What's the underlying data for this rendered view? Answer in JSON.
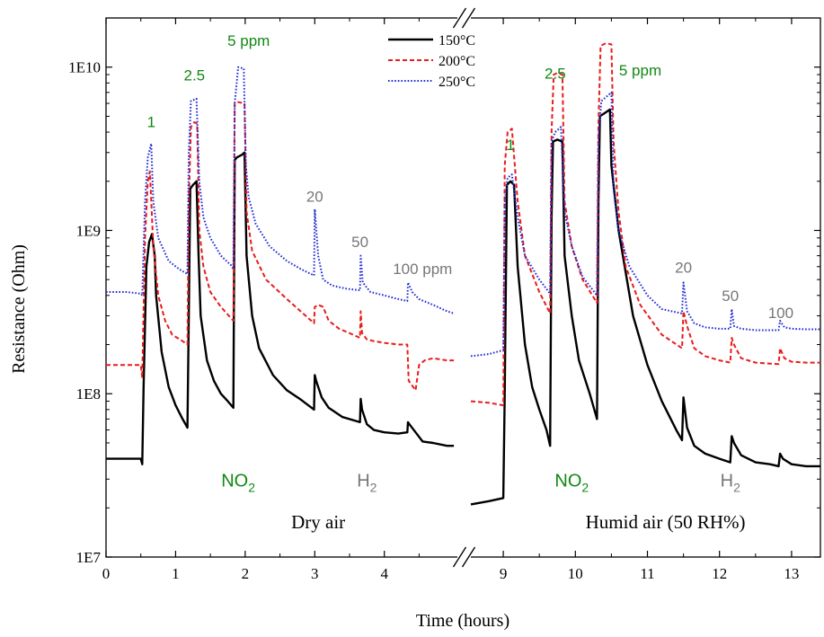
{
  "chart_data": {
    "type": "line",
    "ylabel": "Resistance (Ohm)",
    "xlabel": "Time (hours)",
    "y_scale": "log",
    "ylim": [
      10000000,
      20000000000
    ],
    "y_ticks": [
      {
        "value": 10000000,
        "label": "1E7"
      },
      {
        "value": 100000000,
        "label": "1E8"
      },
      {
        "value": 1000000000,
        "label": "1E9"
      },
      {
        "value": 10000000000,
        "label": "1E10"
      }
    ],
    "x_segments": [
      {
        "range": [
          0,
          5.05
        ],
        "ticks": [
          0,
          1,
          2,
          3,
          4
        ]
      },
      {
        "range": [
          8.55,
          13.4
        ],
        "ticks": [
          9,
          10,
          11,
          12,
          13
        ]
      }
    ],
    "x_tick_labels": [
      "0",
      "1",
      "2",
      "3",
      "4",
      "9",
      "10",
      "11",
      "12",
      "13"
    ],
    "axis_break": true,
    "legend": {
      "placement": "top-center",
      "entries": [
        {
          "name": "150°C",
          "color": "#000000",
          "dash": "solid"
        },
        {
          "name": "200°C",
          "color": "#e81c1c",
          "dash": "dashed"
        },
        {
          "name": "250°C",
          "color": "#1f2bd6",
          "dash": "dotted"
        }
      ]
    },
    "annotations": [
      {
        "text": "1",
        "x": 0.65,
        "y": 4300000000,
        "color": "#118811"
      },
      {
        "text": "2.5",
        "x": 1.27,
        "y": 8300000000,
        "color": "#118811"
      },
      {
        "text": "5 ppm",
        "x": 2.05,
        "y": 13500000000,
        "color": "#118811"
      },
      {
        "text": "20",
        "x": 3.0,
        "y": 1500000000,
        "color": "#777777"
      },
      {
        "text": "50",
        "x": 3.65,
        "y": 790000000,
        "color": "#777777"
      },
      {
        "text": "100 ppm",
        "x": 4.55,
        "y": 540000000,
        "color": "#777777"
      },
      {
        "text": "1",
        "x": 9.1,
        "y": 3100000000,
        "color": "#118811"
      },
      {
        "text": "2.5",
        "x": 9.72,
        "y": 8500000000,
        "color": "#118811"
      },
      {
        "text": "5 ppm",
        "x": 10.9,
        "y": 8900000000,
        "color": "#118811"
      },
      {
        "text": "20",
        "x": 11.5,
        "y": 550000000,
        "color": "#777777"
      },
      {
        "text": "50",
        "x": 12.15,
        "y": 370000000,
        "color": "#777777"
      },
      {
        "text": "100",
        "x": 12.85,
        "y": 290000000,
        "color": "#777777"
      }
    ],
    "gas_labels": [
      {
        "text": "NO",
        "sub": "2",
        "x": 1.9,
        "y": 27000000,
        "color": "#118811"
      },
      {
        "text": "H",
        "sub": "2",
        "x": 3.75,
        "y": 27000000,
        "color": "#777777"
      },
      {
        "text": "NO",
        "sub": "2",
        "x": 9.95,
        "y": 27000000,
        "color": "#118811"
      },
      {
        "text": "H",
        "sub": "2",
        "x": 12.15,
        "y": 27000000,
        "color": "#777777"
      }
    ],
    "panel_labels": [
      {
        "text": "Dry air",
        "x": 3.05,
        "y": 15000000
      },
      {
        "text": "Humid air (50 RH%)",
        "x": 11.25,
        "y": 15000000
      }
    ],
    "series": [
      {
        "name": "150°C",
        "color": "#000000",
        "dash": "solid",
        "x": [
          0,
          0.3,
          0.5,
          0.52,
          0.54,
          0.58,
          0.62,
          0.66,
          0.7,
          0.72,
          0.8,
          0.9,
          1.0,
          1.1,
          1.17,
          1.19,
          1.21,
          1.25,
          1.3,
          1.33,
          1.36,
          1.45,
          1.55,
          1.65,
          1.75,
          1.83,
          1.85,
          1.88,
          1.95,
          1.99,
          2.02,
          2.1,
          2.2,
          2.4,
          2.6,
          2.8,
          2.99,
          3.0,
          3.02,
          3.1,
          3.2,
          3.4,
          3.65,
          3.66,
          3.68,
          3.75,
          3.85,
          4.0,
          4.2,
          4.33,
          4.34,
          4.36,
          4.45,
          4.55,
          4.7,
          4.9,
          5.0,
          null,
          8.55,
          8.8,
          9.0,
          9.02,
          9.05,
          9.1,
          9.15,
          9.2,
          9.3,
          9.4,
          9.5,
          9.6,
          9.65,
          9.67,
          9.69,
          9.75,
          9.82,
          9.85,
          9.95,
          10.05,
          10.2,
          10.3,
          10.32,
          10.34,
          10.4,
          10.48,
          10.5,
          10.6,
          10.8,
          11.0,
          11.2,
          11.4,
          11.48,
          11.5,
          11.55,
          11.65,
          11.8,
          12.0,
          12.15,
          12.17,
          12.2,
          12.3,
          12.5,
          12.7,
          12.82,
          12.84,
          12.88,
          13.0,
          13.2,
          13.4
        ],
        "y": [
          40000000,
          40000000,
          40000000,
          37000000,
          110000000,
          600000000,
          850000000,
          950000000,
          700000000,
          400000000,
          180000000,
          110000000,
          85000000,
          70000000,
          62000000,
          300000000,
          1800000000,
          1900000000,
          2000000000,
          700000000,
          300000000,
          160000000,
          120000000,
          100000000,
          90000000,
          82000000,
          2700000000,
          2800000000,
          2900000000,
          3000000000,
          700000000,
          300000000,
          190000000,
          130000000,
          105000000,
          92000000,
          80000000,
          130000000,
          120000000,
          95000000,
          82000000,
          72000000,
          67000000,
          93000000,
          80000000,
          65000000,
          60000000,
          58000000,
          57000000,
          58000000,
          67000000,
          65000000,
          58000000,
          51000000,
          50000000,
          48000000,
          48000000,
          null,
          21000000,
          22000000,
          23000000,
          100000000,
          1900000000,
          2000000000,
          1900000000,
          600000000,
          200000000,
          110000000,
          80000000,
          60000000,
          48000000,
          1200000000,
          3500000000,
          3600000000,
          3500000000,
          700000000,
          300000000,
          160000000,
          100000000,
          70000000,
          1500000000,
          5000000000,
          5200000000,
          5500000000,
          2500000000,
          1000000000,
          300000000,
          150000000,
          90000000,
          60000000,
          52000000,
          95000000,
          62000000,
          48000000,
          43000000,
          40000000,
          38000000,
          55000000,
          50000000,
          42000000,
          38000000,
          37000000,
          36000000,
          43000000,
          40000000,
          37000000,
          36000000,
          36000000
        ]
      },
      {
        "name": "200°C",
        "color": "#e81c1c",
        "dash": "dashed",
        "x": [
          0,
          0.3,
          0.5,
          0.52,
          0.56,
          0.6,
          0.63,
          0.68,
          0.75,
          0.85,
          0.95,
          1.1,
          1.17,
          1.19,
          1.22,
          1.27,
          1.31,
          1.34,
          1.4,
          1.5,
          1.65,
          1.83,
          1.85,
          1.9,
          1.99,
          2.02,
          2.1,
          2.3,
          2.6,
          2.99,
          3.0,
          3.05,
          3.12,
          3.2,
          3.35,
          3.5,
          3.65,
          3.66,
          3.68,
          3.75,
          3.85,
          4.0,
          4.2,
          4.33,
          4.35,
          4.45,
          4.5,
          4.58,
          4.7,
          4.9,
          5.0,
          null,
          8.55,
          8.8,
          9.0,
          9.02,
          9.06,
          9.12,
          9.2,
          9.3,
          9.5,
          9.65,
          9.67,
          9.7,
          9.75,
          9.82,
          9.85,
          9.95,
          10.1,
          10.3,
          10.32,
          10.35,
          10.42,
          10.5,
          10.53,
          10.6,
          10.7,
          10.9,
          11.2,
          11.48,
          11.5,
          11.55,
          11.65,
          11.8,
          12.0,
          12.15,
          12.17,
          12.2,
          12.3,
          12.5,
          12.7,
          12.82,
          12.84,
          12.9,
          13.0,
          13.2,
          13.4
        ],
        "y": [
          150000000,
          150000000,
          150000000,
          125000000,
          900000000,
          2000000000,
          2300000000,
          800000000,
          400000000,
          280000000,
          230000000,
          210000000,
          200000000,
          1500000000,
          4300000000,
          4600000000,
          4500000000,
          1000000000,
          600000000,
          420000000,
          340000000,
          280000000,
          6000000000,
          6100000000,
          6000000000,
          1300000000,
          750000000,
          500000000,
          380000000,
          270000000,
          340000000,
          350000000,
          340000000,
          280000000,
          250000000,
          235000000,
          220000000,
          320000000,
          235000000,
          215000000,
          210000000,
          205000000,
          200000000,
          200000000,
          120000000,
          105000000,
          150000000,
          160000000,
          165000000,
          160000000,
          160000000,
          null,
          90000000,
          88000000,
          85000000,
          2500000000,
          4000000000,
          4200000000,
          1500000000,
          700000000,
          420000000,
          310000000,
          4000000000,
          9000000000,
          9200000000,
          9000000000,
          1500000000,
          800000000,
          500000000,
          360000000,
          4500000000,
          13500000000,
          14000000000,
          13800000000,
          3500000000,
          1300000000,
          600000000,
          350000000,
          230000000,
          190000000,
          320000000,
          260000000,
          190000000,
          170000000,
          160000000,
          155000000,
          220000000,
          200000000,
          165000000,
          155000000,
          153000000,
          152000000,
          190000000,
          165000000,
          157000000,
          155000000,
          155000000
        ]
      },
      {
        "name": "250°C",
        "color": "#1f2bd6",
        "dash": "dotted",
        "x": [
          0,
          0.3,
          0.5,
          0.52,
          0.56,
          0.6,
          0.65,
          0.68,
          0.75,
          0.9,
          1.05,
          1.17,
          1.19,
          1.22,
          1.3,
          1.34,
          1.4,
          1.5,
          1.65,
          1.8,
          1.83,
          1.85,
          1.9,
          1.98,
          2.01,
          2.05,
          2.15,
          2.35,
          2.6,
          2.8,
          2.99,
          3.0,
          3.05,
          3.12,
          3.25,
          3.45,
          3.65,
          3.66,
          3.69,
          3.8,
          4.0,
          4.2,
          4.33,
          4.34,
          4.4,
          4.5,
          4.7,
          4.9,
          5.0,
          null,
          8.55,
          8.8,
          9.0,
          9.02,
          9.06,
          9.12,
          9.2,
          9.3,
          9.5,
          9.65,
          9.67,
          9.72,
          9.8,
          9.85,
          9.95,
          10.1,
          10.3,
          10.32,
          10.36,
          10.5,
          10.53,
          10.6,
          10.75,
          11.0,
          11.2,
          11.48,
          11.5,
          11.55,
          11.65,
          11.8,
          12.0,
          12.15,
          12.17,
          12.2,
          12.3,
          12.5,
          12.7,
          12.82,
          12.84,
          12.9,
          13.0,
          13.2,
          13.4
        ],
        "y": [
          420000000,
          420000000,
          410000000,
          400000000,
          1500000000,
          2800000000,
          3400000000,
          1500000000,
          900000000,
          650000000,
          580000000,
          540000000,
          3000000000,
          6200000000,
          6400000000,
          2000000000,
          1200000000,
          900000000,
          700000000,
          610000000,
          580000000,
          6000000000,
          10000000000,
          9800000000,
          2500000000,
          1600000000,
          1100000000,
          800000000,
          650000000,
          580000000,
          530000000,
          1350000000,
          700000000,
          500000000,
          460000000,
          440000000,
          430000000,
          700000000,
          480000000,
          420000000,
          400000000,
          380000000,
          370000000,
          480000000,
          420000000,
          380000000,
          350000000,
          320000000,
          310000000,
          null,
          170000000,
          175000000,
          185000000,
          1500000000,
          2100000000,
          2200000000,
          1200000000,
          700000000,
          500000000,
          410000000,
          3500000000,
          4000000000,
          4300000000,
          1300000000,
          800000000,
          520000000,
          400000000,
          3700000000,
          6200000000,
          7000000000,
          1800000000,
          1000000000,
          600000000,
          400000000,
          330000000,
          310000000,
          480000000,
          320000000,
          270000000,
          255000000,
          250000000,
          250000000,
          330000000,
          260000000,
          250000000,
          245000000,
          245000000,
          245000000,
          280000000,
          255000000,
          250000000,
          248000000,
          248000000
        ]
      }
    ]
  }
}
